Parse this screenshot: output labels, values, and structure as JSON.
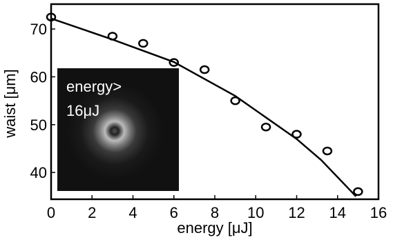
{
  "chart_data": {
    "type": "scatter",
    "xlabel": "energy [μJ]",
    "ylabel": "waist [μm]",
    "inset_text": [
      "energy>",
      "16μJ"
    ],
    "xlim": [
      0,
      16
    ],
    "xticks": [
      0,
      2,
      4,
      6,
      8,
      10,
      12,
      14,
      16
    ],
    "ylim": [
      34.4,
      75.2
    ],
    "yticks": [
      40,
      50,
      60,
      70
    ],
    "series": [
      {
        "type": "scatter",
        "color": "#000000",
        "x": [
          0,
          3,
          4.5,
          6,
          7.5,
          9,
          10.5,
          12,
          13.5,
          15
        ],
        "values": [
          72.5,
          68.5,
          67,
          63,
          61.5,
          55,
          49.5,
          48,
          44.5,
          36
        ]
      },
      {
        "type": "line",
        "color": "#000000",
        "x": [
          0,
          3,
          6,
          9,
          12,
          13.2,
          14.9
        ],
        "values": [
          72.2,
          67.8,
          63.1,
          56,
          47,
          42.6,
          35
        ]
      }
    ]
  }
}
